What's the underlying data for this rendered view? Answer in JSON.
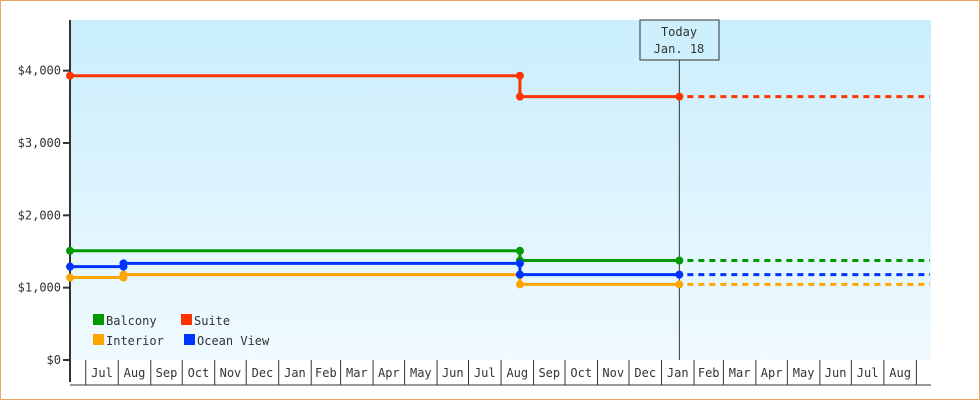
{
  "chart_data": {
    "type": "line",
    "step": true,
    "ylim": [
      0,
      4700
    ],
    "yticks": [
      0,
      1000,
      2000,
      3000,
      4000
    ],
    "ytick_labels": [
      "$0",
      "$1,000",
      "$2,000",
      "$3,000",
      "$4,000"
    ],
    "xlim": [
      "2016-06-16",
      "2018-09-14"
    ],
    "month_labels": [
      "Jul",
      "Aug",
      "Sep",
      "Oct",
      "Nov",
      "Dec",
      "Jan",
      "Feb",
      "Mar",
      "Apr",
      "May",
      "Jun",
      "Jul",
      "Aug",
      "Sep",
      "Oct",
      "Nov",
      "Dec",
      "Jan",
      "Feb",
      "Mar",
      "Apr",
      "May",
      "Jun",
      "Jul",
      "Aug"
    ],
    "today": {
      "date": "2018-01-18",
      "label_line1": "Today",
      "label_line2": "Jan. 18"
    },
    "legend_position": "bottom-left",
    "series": [
      {
        "name": "Balcony",
        "color": "#009900",
        "points": [
          [
            "2016-06-16",
            1510
          ],
          [
            "2017-08-19",
            1510
          ],
          [
            "2017-08-19",
            1375
          ],
          [
            "2018-01-18",
            1375
          ]
        ]
      },
      {
        "name": "Suite",
        "color": "#ff3300",
        "points": [
          [
            "2016-06-16",
            3930
          ],
          [
            "2017-08-19",
            3930
          ],
          [
            "2017-08-19",
            3640
          ],
          [
            "2018-01-18",
            3640
          ]
        ]
      },
      {
        "name": "Interior",
        "color": "#ffa500",
        "points": [
          [
            "2016-06-16",
            1140
          ],
          [
            "2016-08-06",
            1140
          ],
          [
            "2016-08-06",
            1180
          ],
          [
            "2017-08-19",
            1180
          ],
          [
            "2017-08-19",
            1045
          ],
          [
            "2018-01-18",
            1045
          ]
        ]
      },
      {
        "name": "Ocean View",
        "color": "#0033ff",
        "points": [
          [
            "2016-06-16",
            1290
          ],
          [
            "2016-08-06",
            1290
          ],
          [
            "2016-08-06",
            1335
          ],
          [
            "2017-08-19",
            1335
          ],
          [
            "2017-08-19",
            1180
          ],
          [
            "2018-01-18",
            1180
          ]
        ]
      }
    ]
  }
}
